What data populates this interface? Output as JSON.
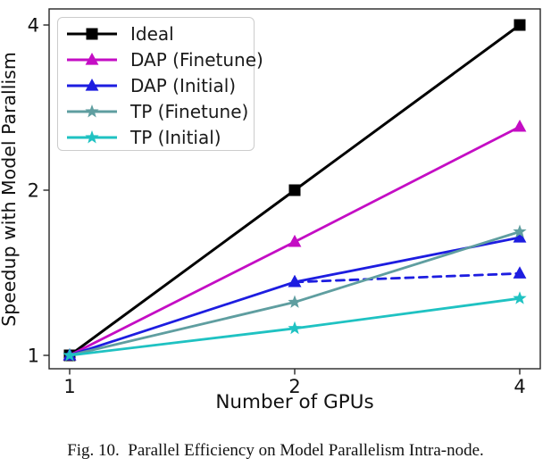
{
  "figure": {
    "caption": "Fig. 10.  Parallel Efficiency on Model Parallelism Intra-node."
  },
  "chart_data": {
    "type": "line",
    "title": "",
    "xlabel": "Number of GPUs",
    "ylabel": "Speedup with Model Parallism",
    "x_scale": "log2",
    "y_scale": "log2",
    "x_ticks": [
      1,
      2,
      4
    ],
    "y_ticks": [
      1,
      2,
      4
    ],
    "xlim": [
      0.94,
      4.26
    ],
    "ylim": [
      0.95,
      4.28
    ],
    "grid": false,
    "legend_position": "upper left",
    "series": [
      {
        "name": "Ideal",
        "color": "#000000",
        "marker": "square",
        "linestyle": "solid",
        "in_legend": true,
        "x": [
          1,
          2,
          4
        ],
        "y": [
          1.0,
          2.0,
          4.0
        ]
      },
      {
        "name": "DAP (Finetune)",
        "color": "#c40dc4",
        "marker": "triangle-up",
        "linestyle": "solid",
        "in_legend": true,
        "x": [
          1,
          2,
          4
        ],
        "y": [
          1.0,
          1.61,
          2.61
        ]
      },
      {
        "name": "DAP (Initial)",
        "color": "#1d1de0",
        "marker": "triangle-up",
        "linestyle": "solid",
        "in_legend": true,
        "x": [
          1,
          2,
          4
        ],
        "y": [
          1.0,
          1.36,
          1.64
        ]
      },
      {
        "name": "DAP (Initial) dashed branch",
        "color": "#1d1de0",
        "marker": "triangle-up",
        "linestyle": "dashed",
        "in_legend": false,
        "x": [
          2,
          4
        ],
        "y": [
          1.36,
          1.41
        ]
      },
      {
        "name": "TP (Finetune)",
        "color": "#5f9ea0",
        "marker": "star",
        "linestyle": "solid",
        "in_legend": true,
        "x": [
          1,
          2,
          4
        ],
        "y": [
          1.0,
          1.25,
          1.68
        ]
      },
      {
        "name": "TP (Initial)",
        "color": "#1fc2c2",
        "marker": "star",
        "linestyle": "solid",
        "in_legend": true,
        "x": [
          1,
          2,
          4
        ],
        "y": [
          1.0,
          1.12,
          1.27
        ]
      }
    ]
  }
}
